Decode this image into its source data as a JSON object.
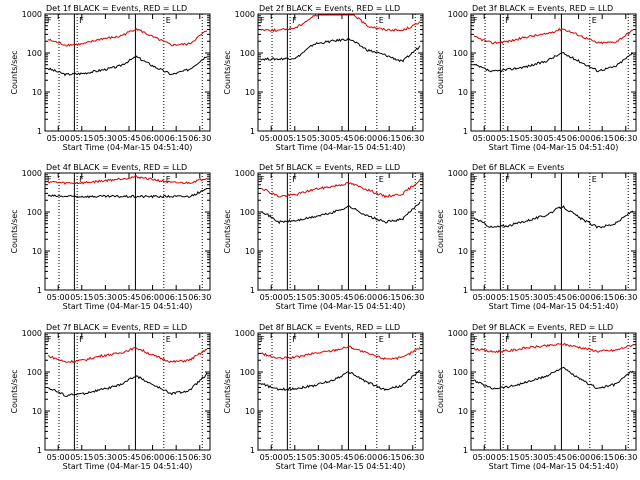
{
  "chart_data": [
    {
      "type": "line",
      "title": "Det 1f BLACK = Events, RED = LLD",
      "xlabel": "Start Time (04-Mar-15 04:51:40)",
      "ylabel": "Counts/sec",
      "ylim": [
        1,
        1000
      ],
      "yscale": "log",
      "x_ticks": [
        "05:00",
        "05:15",
        "05:30",
        "05:45",
        "06:00",
        "06:15",
        "06:30"
      ],
      "y_ticks": [
        "1",
        "10",
        "100",
        "1000"
      ],
      "markers": [
        "F",
        "E"
      ],
      "series": [
        {
          "color": "#000000",
          "values": [
            40,
            28,
            30,
            36,
            45,
            80,
            45,
            28,
            38,
            85
          ]
        },
        {
          "color": "#dd0000",
          "values": [
            220,
            160,
            170,
            230,
            260,
            420,
            250,
            160,
            170,
            380
          ]
        }
      ]
    },
    {
      "type": "line",
      "title": "Det 2f BLACK = Events, RED = LLD",
      "xlabel": "Start Time (04-Mar-15 04:51:40)",
      "ylabel": "Counts/sec",
      "ylim": [
        1,
        1000
      ],
      "yscale": "log",
      "x_ticks": [
        "05:00",
        "05:15",
        "05:30",
        "05:45",
        "06:00",
        "06:15",
        "06:30"
      ],
      "y_ticks": [
        "1",
        "10",
        "100",
        "1000"
      ],
      "markers": [
        "F",
        "E"
      ],
      "series": [
        {
          "color": "#000000",
          "values": [
            70,
            70,
            75,
            170,
            200,
            230,
            120,
            90,
            60,
            150
          ]
        },
        {
          "color": "#dd0000",
          "values": [
            400,
            380,
            450,
            900,
            1100,
            1200,
            500,
            400,
            380,
            600
          ]
        }
      ]
    },
    {
      "type": "line",
      "title": "Det 3f BLACK = Events, RED = LLD",
      "xlabel": "Start Time (04-Mar-15 04:51:40)",
      "ylabel": "Counts/sec",
      "ylim": [
        1,
        1000
      ],
      "yscale": "log",
      "x_ticks": [
        "05:00",
        "05:15",
        "05:30",
        "05:45",
        "06:00",
        "06:15",
        "06:30"
      ],
      "y_ticks": [
        "1",
        "10",
        "100",
        "1000"
      ],
      "markers": [
        "F",
        "E"
      ],
      "series": [
        {
          "color": "#000000",
          "values": [
            50,
            33,
            38,
            45,
            60,
            100,
            60,
            35,
            45,
            100
          ]
        },
        {
          "color": "#dd0000",
          "values": [
            260,
            180,
            200,
            260,
            300,
            420,
            280,
            180,
            190,
            380
          ]
        }
      ]
    },
    {
      "type": "line",
      "title": "Det 4f BLACK = Events, RED = LLD",
      "xlabel": "Start Time (04-Mar-15 04:51:40)",
      "ylabel": "Counts/sec",
      "ylim": [
        1,
        1000
      ],
      "yscale": "log",
      "x_ticks": [
        "05:00",
        "05:15",
        "05:30",
        "05:45",
        "06:00",
        "06:15",
        "06:30"
      ],
      "y_ticks": [
        "1",
        "10",
        "100",
        "1000"
      ],
      "markers": [
        "F",
        "E"
      ],
      "series": [
        {
          "color": "#000000",
          "values": [
            260,
            250,
            250,
            250,
            250,
            250,
            250,
            250,
            250,
            380
          ]
        },
        {
          "color": "#dd0000",
          "values": [
            600,
            550,
            560,
            620,
            700,
            800,
            680,
            560,
            560,
            750
          ]
        }
      ]
    },
    {
      "type": "line",
      "title": "Det 5f BLACK = Events, RED = LLD",
      "xlabel": "Start Time (04-Mar-15 04:51:40)",
      "ylabel": "Counts/sec",
      "ylim": [
        1,
        1000
      ],
      "yscale": "log",
      "x_ticks": [
        "05:00",
        "05:15",
        "05:30",
        "05:45",
        "06:00",
        "06:15",
        "06:30"
      ],
      "y_ticks": [
        "1",
        "10",
        "100",
        "1000"
      ],
      "markers": [
        "F",
        "E"
      ],
      "series": [
        {
          "color": "#000000",
          "values": [
            110,
            55,
            60,
            75,
            95,
            140,
            80,
            55,
            65,
            180
          ]
        },
        {
          "color": "#dd0000",
          "values": [
            420,
            250,
            280,
            380,
            450,
            550,
            380,
            250,
            290,
            650
          ]
        }
      ]
    },
    {
      "type": "line",
      "title": "Det 6f BLACK = Events",
      "xlabel": "Start Time (04-Mar-15 04:51:40)",
      "ylabel": "Counts/sec",
      "ylim": [
        1,
        1000
      ],
      "yscale": "log",
      "x_ticks": [
        "05:00",
        "05:15",
        "05:30",
        "05:45",
        "06:00",
        "06:15",
        "06:30"
      ],
      "y_ticks": [
        "1",
        "10",
        "100",
        "1000"
      ],
      "markers": [
        "F",
        "E"
      ],
      "series": [
        {
          "color": "#000000",
          "values": [
            70,
            40,
            45,
            60,
            80,
            140,
            70,
            40,
            50,
            110
          ]
        }
      ]
    },
    {
      "type": "line",
      "title": "Det 7f BLACK = Events, RED = LLD",
      "xlabel": "Start Time (04-Mar-15 04:51:40)",
      "ylabel": "Counts/sec",
      "ylim": [
        1,
        1000
      ],
      "yscale": "log",
      "x_ticks": [
        "05:00",
        "05:15",
        "05:30",
        "05:45",
        "06:00",
        "06:15",
        "06:30"
      ],
      "y_ticks": [
        "1",
        "10",
        "100",
        "1000"
      ],
      "markers": [
        "F",
        "E"
      ],
      "series": [
        {
          "color": "#000000",
          "values": [
            40,
            25,
            28,
            35,
            45,
            80,
            45,
            28,
            33,
            90
          ]
        },
        {
          "color": "#dd0000",
          "values": [
            260,
            180,
            200,
            260,
            300,
            420,
            260,
            180,
            200,
            380
          ]
        }
      ]
    },
    {
      "type": "line",
      "title": "Det 8f BLACK = Events, RED = LLD",
      "xlabel": "Start Time (04-Mar-15 04:51:40)",
      "ylabel": "Counts/sec",
      "ylim": [
        1,
        1000
      ],
      "yscale": "log",
      "x_ticks": [
        "05:00",
        "05:15",
        "05:30",
        "05:45",
        "06:00",
        "06:15",
        "06:30"
      ],
      "y_ticks": [
        "1",
        "10",
        "100",
        "1000"
      ],
      "markers": [
        "F",
        "E"
      ],
      "series": [
        {
          "color": "#000000",
          "values": [
            50,
            35,
            38,
            45,
            60,
            100,
            55,
            35,
            45,
            110
          ]
        },
        {
          "color": "#dd0000",
          "values": [
            300,
            220,
            240,
            300,
            350,
            450,
            300,
            220,
            230,
            420
          ]
        }
      ]
    },
    {
      "type": "line",
      "title": "Det 9f BLACK = Events, RED = LLD",
      "xlabel": "Start Time (04-Mar-15 04:51:40)",
      "ylabel": "Counts/sec",
      "ylim": [
        1,
        1000
      ],
      "yscale": "log",
      "x_ticks": [
        "05:00",
        "05:15",
        "05:30",
        "05:45",
        "06:00",
        "06:15",
        "06:30"
      ],
      "y_ticks": [
        "1",
        "10",
        "100",
        "1000"
      ],
      "markers": [
        "F",
        "E"
      ],
      "series": [
        {
          "color": "#000000",
          "values": [
            60,
            38,
            42,
            55,
            75,
            130,
            65,
            38,
            48,
            110
          ]
        },
        {
          "color": "#dd0000",
          "values": [
            400,
            330,
            350,
            420,
            460,
            520,
            430,
            340,
            360,
            500
          ]
        }
      ]
    }
  ]
}
